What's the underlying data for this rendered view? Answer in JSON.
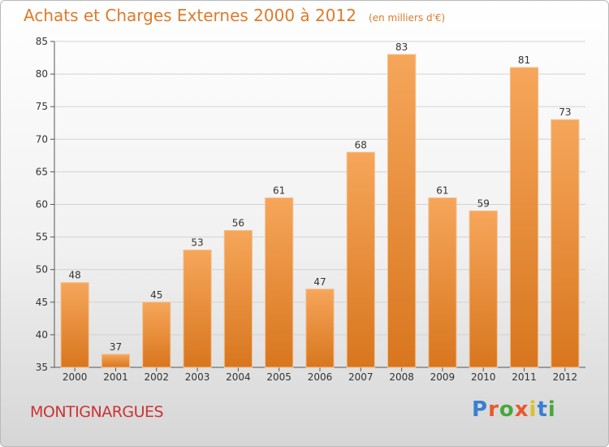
{
  "header": {
    "title": "Achats et Charges Externes 2000 à 2012",
    "subtitle": "(en milliers d'€)"
  },
  "footer": {
    "place": "MONTIGNARGUES",
    "logo": "Proxiti"
  },
  "colors": {
    "accent": "#e07a2a",
    "place": "#cc3333",
    "bar_top": "#f6a65a",
    "bar_bottom": "#d8761e"
  },
  "logo_colors": [
    "#3a7fd1",
    "#e8582d",
    "#46a83c",
    "#e8582d",
    "#d9c12a",
    "#3a7fd1",
    "#46a83c"
  ],
  "chart_data": {
    "type": "bar",
    "title": "Achats et Charges Externes 2000 à 2012",
    "subtitle": "(en milliers d'€)",
    "xlabel": "",
    "ylabel": "",
    "categories": [
      "2000",
      "2001",
      "2002",
      "2003",
      "2004",
      "2005",
      "2006",
      "2007",
      "2008",
      "2009",
      "2010",
      "2011",
      "2012"
    ],
    "values": [
      48,
      37,
      45,
      53,
      56,
      61,
      47,
      68,
      83,
      61,
      59,
      81,
      73
    ],
    "ylim": [
      35,
      85
    ],
    "yticks": [
      35,
      40,
      45,
      50,
      55,
      60,
      65,
      70,
      75,
      80,
      85
    ],
    "grid": true,
    "legend": "none"
  }
}
